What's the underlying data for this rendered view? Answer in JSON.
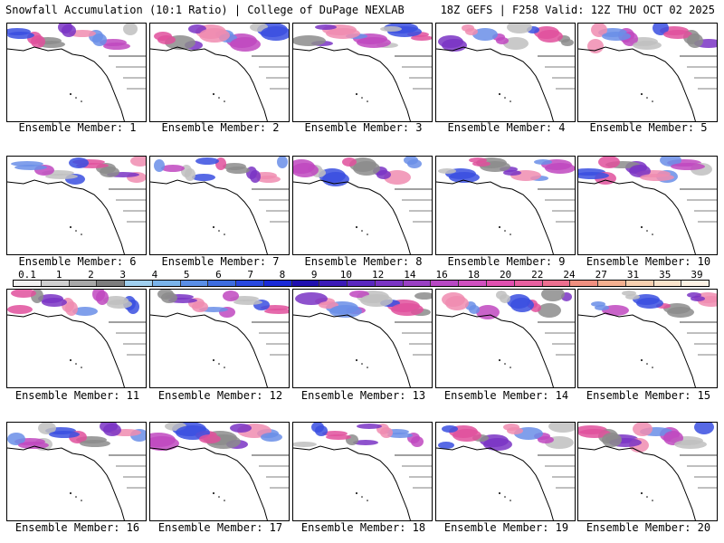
{
  "header": {
    "left_title": "Snowfall Accumulation (10:1 Ratio) | College of DuPage NEXLAB",
    "right_title": "18Z GEFS | F258 Valid: 12Z THU OCT 02 2025"
  },
  "panels": [
    {
      "label": "Ensemble Member: 1"
    },
    {
      "label": "Ensemble Member: 2"
    },
    {
      "label": "Ensemble Member: 3"
    },
    {
      "label": "Ensemble Member: 4"
    },
    {
      "label": "Ensemble Member: 5"
    },
    {
      "label": "Ensemble Member: 6"
    },
    {
      "label": "Ensemble Member: 7"
    },
    {
      "label": "Ensemble Member: 8"
    },
    {
      "label": "Ensemble Member: 9"
    },
    {
      "label": "Ensemble Member: 10"
    },
    {
      "label": "Ensemble Member: 11"
    },
    {
      "label": "Ensemble Member: 12"
    },
    {
      "label": "Ensemble Member: 13"
    },
    {
      "label": "Ensemble Member: 14"
    },
    {
      "label": "Ensemble Member: 15"
    },
    {
      "label": "Ensemble Member: 16"
    },
    {
      "label": "Ensemble Member: 17"
    },
    {
      "label": "Ensemble Member: 18"
    },
    {
      "label": "Ensemble Member: 19"
    },
    {
      "label": "Ensemble Member: 20"
    }
  ],
  "colorbar": {
    "labels": [
      "0.1",
      "1",
      "2",
      "3",
      "4",
      "5",
      "6",
      "7",
      "8",
      "9",
      "10",
      "12",
      "14",
      "16",
      "18",
      "20",
      "22",
      "24",
      "27",
      "31",
      "35",
      "39"
    ],
    "colors": [
      "#f2f2f2",
      "#d0d0d0",
      "#a8a8a8",
      "#7d7d7d",
      "#a0d0f0",
      "#7ab4ea",
      "#5a8fe6",
      "#3d6de0",
      "#2848e0",
      "#1a2ad8",
      "#2010b0",
      "#3c1ab8",
      "#5a28c0",
      "#7a34c4",
      "#9a40c4",
      "#b848c4",
      "#d050c0",
      "#e050b0",
      "#e860a0",
      "#ec7090",
      "#f09080",
      "#f4b090",
      "#f8d0b0",
      "#fbe4cc",
      "#fdf2e4"
    ]
  }
}
